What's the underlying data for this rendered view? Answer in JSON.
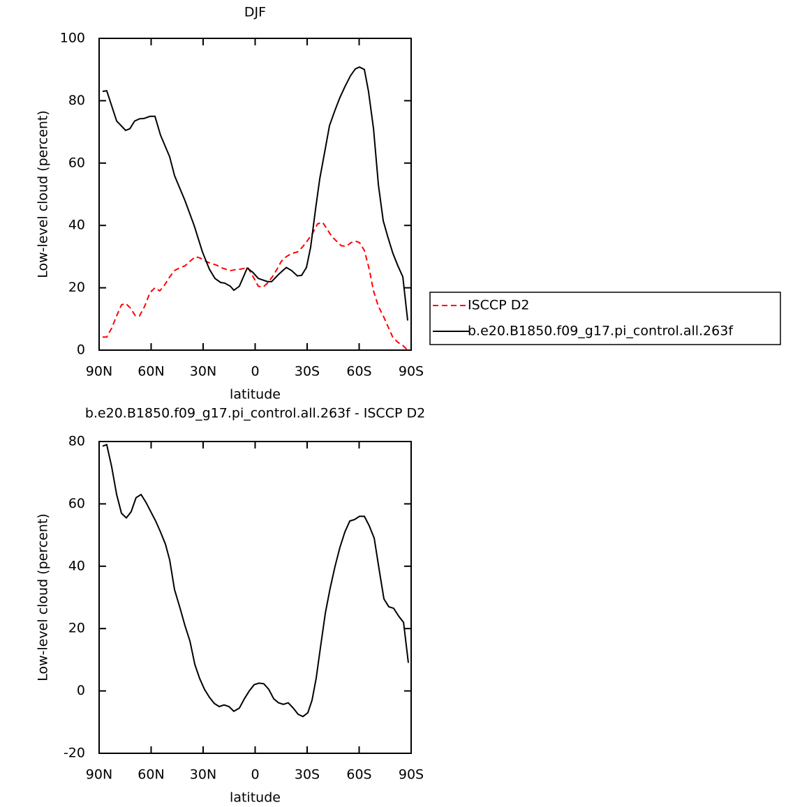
{
  "chart_data": [
    {
      "type": "line",
      "title": "DJF",
      "xlabel": "latitude",
      "ylabel": "Low-level cloud (percent)",
      "xlim": [
        90,
        -90
      ],
      "xticks": [
        {
          "value": 90,
          "label": "90N"
        },
        {
          "value": 60,
          "label": "60N"
        },
        {
          "value": 30,
          "label": "30N"
        },
        0,
        {
          "value": -30,
          "label": "30S"
        },
        {
          "value": -60,
          "label": "60S"
        },
        {
          "value": -90,
          "label": "90S"
        }
      ],
      "ylim": [
        0,
        100
      ],
      "yticks": [
        0,
        20,
        40,
        60,
        80,
        100
      ],
      "legend": "right",
      "series": [
        {
          "name": "ISCCP D2",
          "color": "#ff0000",
          "dash": true,
          "x": [
            88.0,
            85.6,
            82.8,
            79.9,
            77.1,
            74.7,
            71.9,
            69.1,
            66.7,
            63.8,
            60.6,
            57.8,
            55.0,
            52.1,
            49.3,
            46.5,
            43.3,
            40.5,
            37.6,
            34.4,
            31.6,
            28.4,
            25.6,
            22.3,
            19.9,
            17.1,
            14.3,
            11.5,
            8.3,
            4.2,
            0.6,
            -1.8,
            -4.6,
            -7.1,
            -9.9,
            -12.7,
            -15.1,
            -18.0,
            -21.1,
            -24.4,
            -27.2,
            -30.0,
            -33.2,
            -36.0,
            -38.9,
            -41.3,
            -44.1,
            -46.9,
            -49.7,
            -52.6,
            -55.4,
            -57.8,
            -60.2,
            -63.0,
            -65.8,
            -68.3,
            -71.1,
            -73.9,
            -76.7,
            -79.5,
            -82.4,
            -85.2,
            -88.0
          ],
          "values": [
            4.2,
            4.2,
            7,
            11,
            14.5,
            15,
            13.5,
            11,
            11,
            14,
            18.5,
            20,
            19,
            21,
            23.5,
            25.5,
            26.5,
            27,
            28.5,
            30,
            29.5,
            28.5,
            27.8,
            27.3,
            26.5,
            26,
            25.5,
            25.8,
            26,
            26.5,
            23,
            20.5,
            20.2,
            21.5,
            23.5,
            26,
            28.5,
            30,
            31,
            31.5,
            33,
            35,
            37.5,
            40.5,
            41,
            39,
            36.5,
            35,
            33.5,
            33.3,
            34.5,
            35,
            34.5,
            32,
            26,
            19,
            14,
            11,
            7.5,
            4,
            2.5,
            1.5,
            0
          ]
        },
        {
          "name": "b.e20.B1850.f09_g17.pi_control.all.263f",
          "color": "#000000",
          "dash": false,
          "x": [
            88.0,
            85.6,
            79.9,
            74.7,
            72.3,
            69.5,
            66.7,
            64.2,
            60.6,
            57.8,
            54.6,
            49.3,
            46.5,
            40.5,
            35.2,
            30.4,
            26.4,
            23.2,
            19.9,
            17.5,
            14.3,
            12.3,
            9.1,
            4.6,
            1.4,
            -1.8,
            -7.1,
            -9.5,
            -13.9,
            -18.0,
            -21.1,
            -24.4,
            -26.8,
            -29.6,
            -32.0,
            -34.8,
            -37.3,
            -40.1,
            -42.9,
            -46.1,
            -48.9,
            -51.8,
            -55.0,
            -57.8,
            -60.2,
            -63.0,
            -65.4,
            -68.3,
            -71.1,
            -73.9,
            -76.7,
            -79.5,
            -82.4,
            -85.2,
            -88.0
          ],
          "values": [
            83,
            83.2,
            73.5,
            70.5,
            71,
            73.5,
            74.2,
            74.3,
            75,
            75,
            69,
            62,
            56,
            48,
            40,
            31.5,
            26,
            23,
            21.7,
            21.5,
            20.5,
            19.2,
            20.5,
            26.3,
            25,
            23,
            22,
            22,
            24.5,
            26.5,
            25.5,
            23.8,
            24,
            26.5,
            33,
            45,
            55,
            63.5,
            72,
            77,
            81,
            84.5,
            88,
            90.2,
            90.8,
            90,
            83,
            71,
            53,
            41.5,
            36,
            31,
            27,
            23.5,
            9.5
          ]
        }
      ]
    },
    {
      "type": "line",
      "title": "b.e20.B1850.f09_g17.pi_control.all.263f - ISCCP D2",
      "xlabel": "latitude",
      "ylabel": "Low-level cloud (percent)",
      "xlim": [
        90,
        -90
      ],
      "xticks": [
        {
          "value": 90,
          "label": "90N"
        },
        {
          "value": 60,
          "label": "60N"
        },
        {
          "value": 30,
          "label": "30N"
        },
        0,
        {
          "value": -30,
          "label": "30S"
        },
        {
          "value": -60,
          "label": "60S"
        },
        {
          "value": -90,
          "label": "90S"
        }
      ],
      "ylim": [
        -20,
        80
      ],
      "yticks": [
        -20,
        0,
        20,
        40,
        60,
        80
      ],
      "series": [
        {
          "color": "#000000",
          "dash": false,
          "x": [
            88.0,
            85.6,
            82.8,
            79.9,
            77.1,
            74.3,
            71.5,
            68.7,
            65.8,
            63.0,
            60.2,
            57.4,
            54.6,
            51.7,
            49.3,
            46.5,
            43.3,
            40.5,
            37.6,
            34.8,
            32.0,
            29.2,
            26.4,
            23.6,
            20.7,
            17.9,
            15.1,
            12.3,
            9.1,
            6.2,
            3.4,
            0.6,
            -2.2,
            -5.0,
            -7.9,
            -10.7,
            -13.5,
            -16.3,
            -19.1,
            -22.0,
            -24.8,
            -27.6,
            -30.4,
            -32.8,
            -35.2,
            -37.7,
            -40.5,
            -43.3,
            -46.1,
            -48.9,
            -51.8,
            -54.6,
            -57.4,
            -60.2,
            -63.0,
            -65.8,
            -68.7,
            -71.5,
            -74.3,
            -77.1,
            -79.9,
            -82.8,
            -85.6,
            -88.4
          ],
          "values": [
            78.5,
            79,
            72,
            63,
            57,
            55.5,
            57.5,
            62,
            63,
            60.5,
            57.5,
            54.5,
            51,
            47,
            42,
            32.5,
            26.5,
            21,
            16,
            8.5,
            4,
            0.5,
            -2,
            -4,
            -5,
            -4.5,
            -5,
            -6.5,
            -5.5,
            -2.5,
            0,
            2,
            2.5,
            2.3,
            0.5,
            -2.5,
            -3.8,
            -4.3,
            -3.8,
            -5.5,
            -7.5,
            -8.2,
            -7,
            -3,
            4,
            14,
            25,
            33,
            40,
            46,
            51,
            54.5,
            55,
            56,
            56,
            53,
            49,
            39,
            29.5,
            27,
            26.5,
            24,
            22,
            9
          ]
        }
      ]
    }
  ]
}
